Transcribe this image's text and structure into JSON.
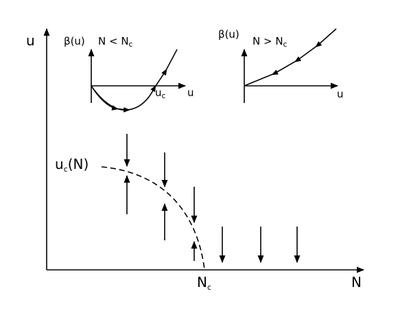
{
  "main": {
    "y_label": "u",
    "x_label": "N",
    "critical_x": {
      "base": "N",
      "sub": "c"
    },
    "curve_label": {
      "base": "u",
      "sub": "c",
      "tail": "(N)"
    }
  },
  "inset_left": {
    "y_label": "β(u)",
    "condition": {
      "base": "N < N",
      "sub": "c"
    },
    "root_label": {
      "base": "u",
      "sub": "c"
    },
    "x_label": "u"
  },
  "inset_right": {
    "y_label": "β(u)",
    "condition": {
      "base": "N > N",
      "sub": "c"
    },
    "x_label": "u"
  }
}
